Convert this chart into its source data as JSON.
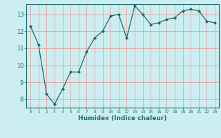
{
  "x": [
    0,
    1,
    2,
    3,
    4,
    5,
    6,
    7,
    8,
    9,
    10,
    11,
    12,
    13,
    14,
    15,
    16,
    17,
    18,
    19,
    20,
    21,
    22,
    23
  ],
  "y": [
    12.3,
    11.2,
    8.3,
    7.7,
    8.6,
    9.6,
    9.6,
    10.8,
    11.6,
    12.0,
    12.9,
    13.0,
    11.6,
    13.5,
    13.0,
    12.4,
    12.5,
    12.7,
    12.8,
    13.2,
    13.3,
    13.2,
    12.6,
    12.5
  ],
  "xlabel": "Humidex (Indice chaleur)",
  "bg_color": "#cceef0",
  "line_color": "#1a6b6b",
  "marker_color": "#1a6b6b",
  "grid_color": "#e8a0a0",
  "ylim": [
    7.5,
    13.6
  ],
  "xlim": [
    -0.5,
    23.5
  ],
  "yticks": [
    8,
    9,
    10,
    11,
    12,
    13
  ],
  "xticks": [
    0,
    1,
    2,
    3,
    4,
    5,
    6,
    7,
    8,
    9,
    10,
    11,
    12,
    13,
    14,
    15,
    16,
    17,
    18,
    19,
    20,
    21,
    22,
    23
  ]
}
